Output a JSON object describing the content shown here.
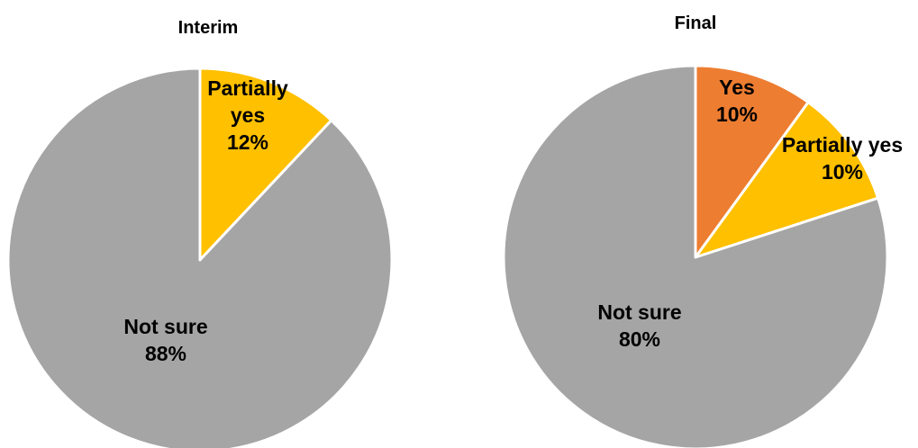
{
  "chart_data": [
    {
      "type": "pie",
      "title": "Interim",
      "slices": [
        {
          "label": [
            "Partially",
            "yes"
          ],
          "percent_text": "12%",
          "value": 12,
          "color": "#FFC000"
        },
        {
          "label": [
            "Not sure"
          ],
          "percent_text": "88%",
          "value": 88,
          "color": "#A5A5A5"
        }
      ]
    },
    {
      "type": "pie",
      "title": "Final",
      "slices": [
        {
          "label": [
            "Yes"
          ],
          "percent_text": "10%",
          "value": 10,
          "color": "#ED7D31"
        },
        {
          "label": [
            "Partially yes"
          ],
          "percent_text": "10%",
          "value": 10,
          "color": "#FFC000"
        },
        {
          "label": [
            "Not sure"
          ],
          "percent_text": "80%",
          "value": 80,
          "color": "#A5A5A5"
        }
      ]
    }
  ]
}
